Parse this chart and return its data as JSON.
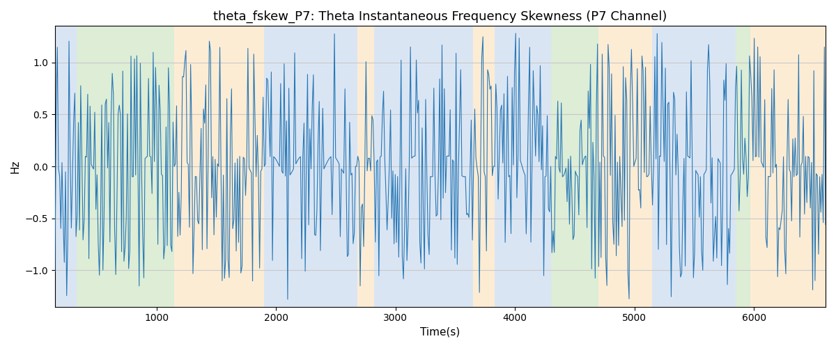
{
  "title": "theta_fskew_P7: Theta Instantaneous Frequency Skewness (P7 Channel)",
  "xlabel": "Time(s)",
  "ylabel": "Hz",
  "xlim": [
    150,
    6600
  ],
  "ylim": [
    -1.35,
    1.35
  ],
  "yticks": [
    -1.0,
    -0.5,
    0.0,
    0.5,
    1.0
  ],
  "xticks": [
    1000,
    2000,
    3000,
    4000,
    5000,
    6000
  ],
  "figsize": [
    12.0,
    5.0
  ],
  "dpi": 100,
  "line_color": "#2878b5",
  "background_color": "#ffffff",
  "grid_color": "#c8c8c8",
  "title_fontsize": 13,
  "label_fontsize": 11,
  "bands": [
    {
      "xmin": 150,
      "xmax": 330,
      "color": "#aec6e8",
      "alpha": 0.45
    },
    {
      "xmin": 330,
      "xmax": 1150,
      "color": "#b5d9a5",
      "alpha": 0.45
    },
    {
      "xmin": 1150,
      "xmax": 1900,
      "color": "#fcd5a0",
      "alpha": 0.45
    },
    {
      "xmin": 1900,
      "xmax": 2680,
      "color": "#aec6e8",
      "alpha": 0.45
    },
    {
      "xmin": 2680,
      "xmax": 2820,
      "color": "#fcd5a0",
      "alpha": 0.45
    },
    {
      "xmin": 2820,
      "xmax": 3650,
      "color": "#aec6e8",
      "alpha": 0.45
    },
    {
      "xmin": 3650,
      "xmax": 3830,
      "color": "#fcd5a0",
      "alpha": 0.45
    },
    {
      "xmin": 3830,
      "xmax": 4300,
      "color": "#aec6e8",
      "alpha": 0.45
    },
    {
      "xmin": 4300,
      "xmax": 4700,
      "color": "#b5d9a5",
      "alpha": 0.45
    },
    {
      "xmin": 4700,
      "xmax": 5150,
      "color": "#fcd5a0",
      "alpha": 0.45
    },
    {
      "xmin": 5150,
      "xmax": 5850,
      "color": "#aec6e8",
      "alpha": 0.45
    },
    {
      "xmin": 5850,
      "xmax": 5970,
      "color": "#b5d9a5",
      "alpha": 0.45
    },
    {
      "xmin": 5970,
      "xmax": 6600,
      "color": "#fcd5a0",
      "alpha": 0.45
    }
  ],
  "seed": 7,
  "n_points": 660
}
